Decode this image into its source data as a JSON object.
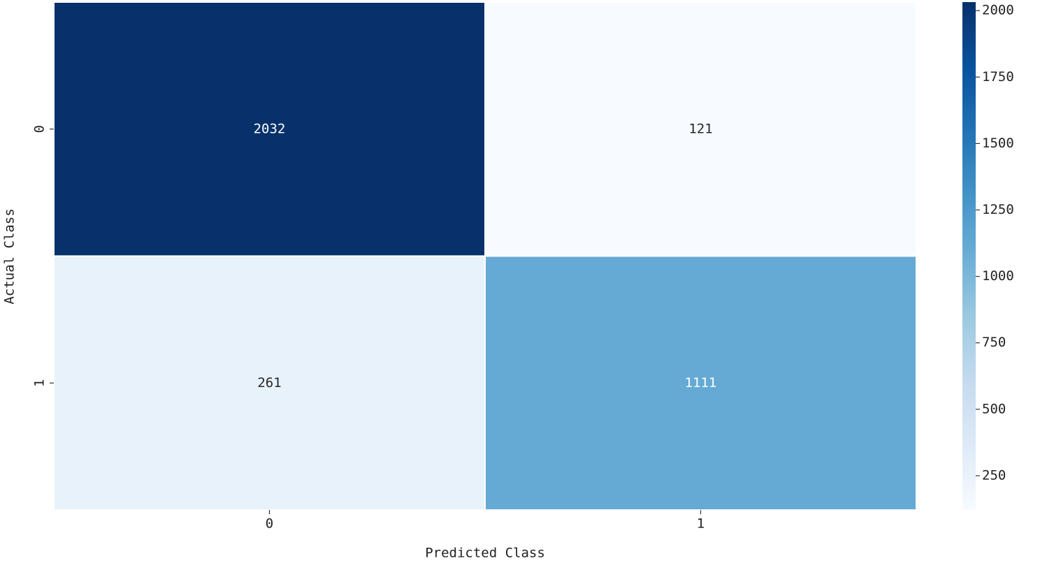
{
  "chart_data": {
    "type": "heatmap",
    "xlabel": "Predicted Class",
    "ylabel": "Actual Class",
    "x_categories": [
      "0",
      "1"
    ],
    "y_categories": [
      "0",
      "1"
    ],
    "values": [
      [
        2032,
        121
      ],
      [
        261,
        1111
      ]
    ],
    "colorscale": [
      "#f7fbff",
      "#deebf7",
      "#c6dbef",
      "#9ecae1",
      "#6baed6",
      "#4292c6",
      "#2171b5",
      "#08519c",
      "#08306b"
    ],
    "zlim": [
      121,
      2032
    ],
    "zticks": [
      250,
      500,
      750,
      1000,
      1250,
      1500,
      1750,
      2000
    ]
  }
}
